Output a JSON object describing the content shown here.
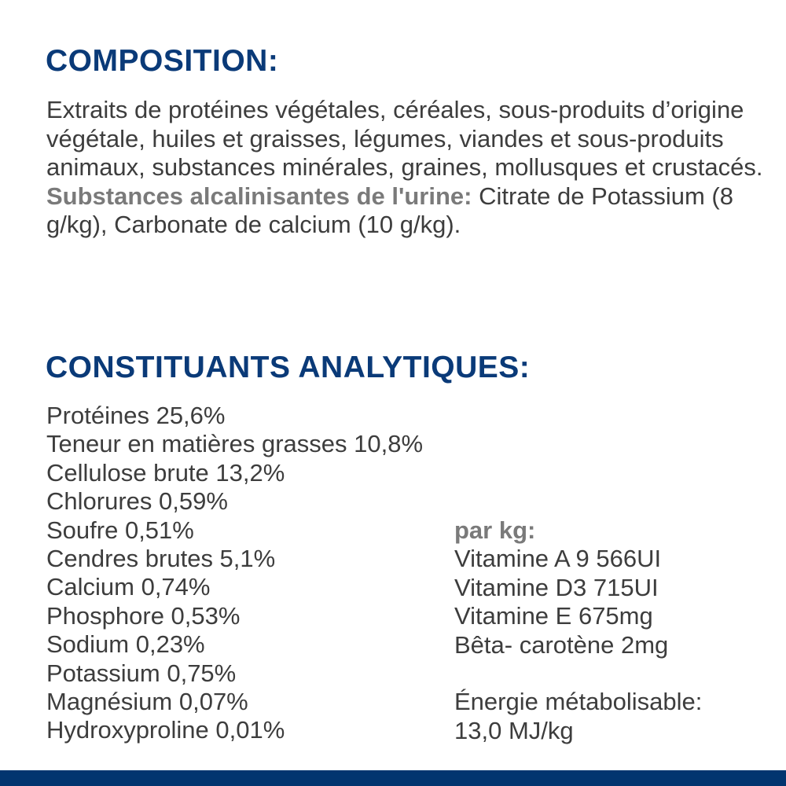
{
  "composition": {
    "title": "COMPOSITION:",
    "text": "Extraits de protéines végétales, céréales, sous-produits d’origine végétale, huiles et graisses, légumes, viandes et sous-produits animaux, substances minérales, graines, mollusques et crustacés.",
    "alkaline_label": "Substances alcalinisantes de l'urine:",
    "alkaline_text": " Citrate de Potassium (8 g/kg), Carbonate de calcium (10 g/kg)."
  },
  "analytical": {
    "title": "CONSTITUANTS ANALYTIQUES:",
    "items": [
      "Protéines 25,6%",
      "Teneur en matières grasses 10,8%",
      "Cellulose brute 13,2%",
      "Chlorures 0,59%",
      "Soufre 0,51%",
      "Cendres brutes 5,1%",
      "Calcium 0,74%",
      "Phosphore 0,53%",
      "Sodium 0,23%",
      "Potassium 0,75%",
      "Magnésium 0,07%",
      "Hydroxyproline 0,01%"
    ],
    "per_kg_label": "par kg:",
    "per_kg_items": [
      "Vitamine A 9 566UI",
      "Vitamine D3 715UI",
      "Vitamine E 675mg",
      "Bêta- carotène 2mg"
    ],
    "energy_label": "Énergie métabolisable:",
    "energy_value": "13,0 MJ/kg"
  },
  "colors": {
    "heading": "#0a3a78",
    "footer_bar": "#02356f",
    "text": "#3d3d3d",
    "label": "#7a7a7a"
  }
}
